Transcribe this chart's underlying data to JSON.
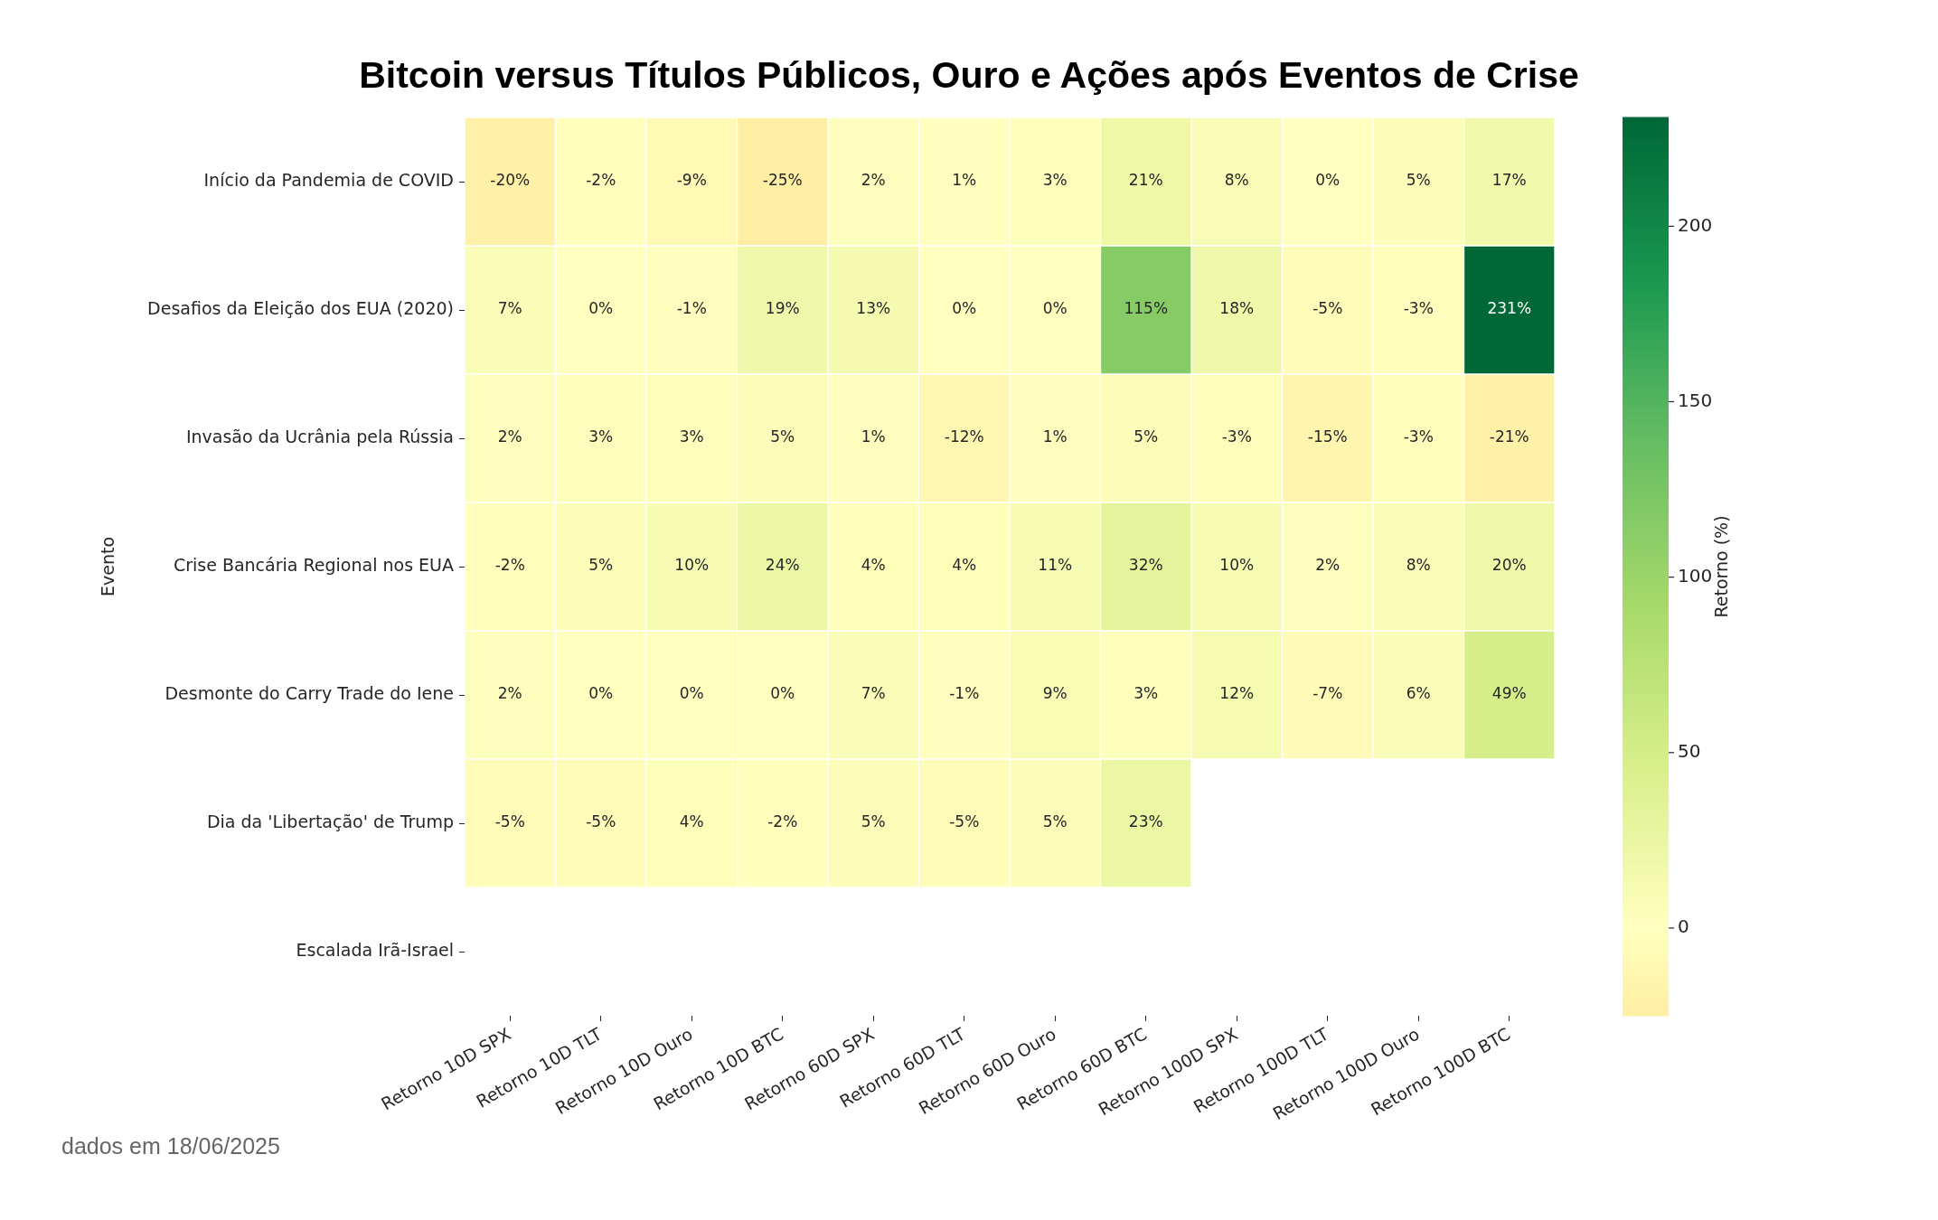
{
  "chart_data": {
    "type": "heatmap",
    "title": "Bitcoin versus Títulos Públicos, Ouro e Ações após Eventos de Crise",
    "ylabel": "Evento",
    "clabel": "Retorno (%)",
    "categories": [
      "Retorno 10D SPX",
      "Retorno 10D TLT",
      "Retorno 10D Ouro",
      "Retorno 10D BTC",
      "Retorno 60D SPX",
      "Retorno 60D TLT",
      "Retorno 60D Ouro",
      "Retorno 60D BTC",
      "Retorno 100D SPX",
      "Retorno 100D TLT",
      "Retorno 100D Ouro",
      "Retorno 100D BTC"
    ],
    "y_categories": [
      "Início da Pandemia de COVID",
      "Desafios da Eleição dos EUA (2020)",
      "Invasão da Ucrânia pela Rússia",
      "Crise Bancária Regional nos EUA",
      "Desmonte do Carry Trade do Iene",
      "Dia da 'Libertação' de Trump",
      "Escalada Irã-Israel"
    ],
    "cells": [
      [
        -20,
        -2,
        -9,
        -25,
        2,
        1,
        3,
        21,
        8,
        0,
        5,
        17
      ],
      [
        7,
        0,
        -1,
        19,
        13,
        0,
        0,
        115,
        18,
        -5,
        -3,
        231
      ],
      [
        2,
        3,
        3,
        5,
        1,
        -12,
        1,
        5,
        -3,
        -15,
        -3,
        -21
      ],
      [
        -2,
        5,
        10,
        24,
        4,
        4,
        11,
        32,
        10,
        2,
        8,
        20
      ],
      [
        2,
        0,
        0,
        0,
        7,
        -1,
        9,
        3,
        12,
        -7,
        6,
        49
      ],
      [
        -5,
        -5,
        4,
        -2,
        5,
        -5,
        5,
        23,
        null,
        null,
        null,
        null
      ],
      [
        null,
        null,
        null,
        null,
        null,
        null,
        null,
        null,
        null,
        null,
        null,
        null
      ]
    ],
    "cell_labels": [
      [
        "-20%",
        "-2%",
        "-9%",
        "-25%",
        "2%",
        "1%",
        "3%",
        "21%",
        "8%",
        "0%",
        "5%",
        "17%"
      ],
      [
        "7%",
        "0%",
        "-1%",
        "19%",
        "13%",
        "0%",
        "0%",
        "115%",
        "18%",
        "-5%",
        "-3%",
        "231%"
      ],
      [
        "2%",
        "3%",
        "3%",
        "5%",
        "1%",
        "-12%",
        "1%",
        "5%",
        "-3%",
        "-15%",
        "-3%",
        "-21%"
      ],
      [
        "-2%",
        "5%",
        "10%",
        "24%",
        "4%",
        "4%",
        "11%",
        "32%",
        "10%",
        "2%",
        "8%",
        "20%"
      ],
      [
        "2%",
        "0%",
        "0%",
        "0%",
        "7%",
        "-1%",
        "9%",
        "3%",
        "12%",
        "-7%",
        "6%",
        "49%"
      ],
      [
        "-5%",
        "-5%",
        "4%",
        "-2%",
        "5%",
        "-5%",
        "5%",
        "23%",
        null,
        null,
        null,
        null
      ],
      [
        null,
        null,
        null,
        null,
        null,
        null,
        null,
        null,
        null,
        null,
        null,
        null
      ]
    ],
    "clim": [
      -25,
      231
    ],
    "cticks": [
      0,
      50,
      100,
      150,
      200
    ],
    "annotations": [
      "dados em 18/06/2025"
    ]
  }
}
